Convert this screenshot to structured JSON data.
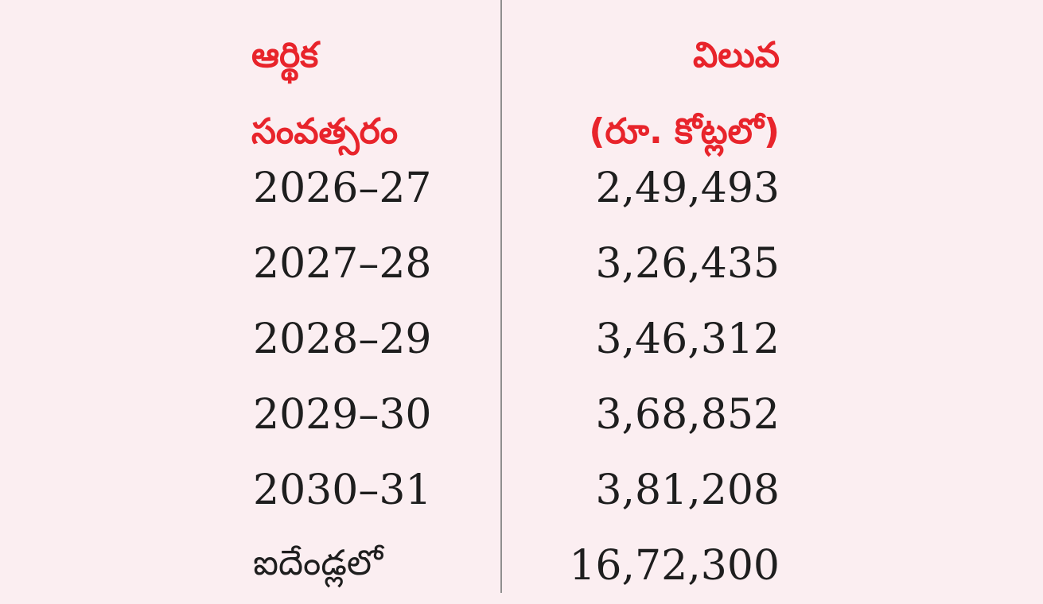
{
  "table": {
    "header": {
      "col1_line1": "ఆర్థిక",
      "col1_line2": "సంవత్సరం",
      "col2_line1": "విలువ",
      "col2_line2": "(రూ. కోట్లలో)"
    },
    "rows": [
      {
        "year": "2026–27",
        "value": "2,49,493"
      },
      {
        "year": "2027–28",
        "value": "3,26,435"
      },
      {
        "year": "2028–29",
        "value": "3,46,312"
      },
      {
        "year": "2029–30",
        "value": "3,68,852"
      },
      {
        "year": "2030–31",
        "value": "3,81,208"
      }
    ],
    "total": {
      "label": "ఐదేండ్లలో",
      "value": "16,72,300"
    }
  },
  "colors": {
    "background": "#fbeef1",
    "header_text": "#e8242b",
    "body_text": "#1e1e1e",
    "divider": "#8f8f8f"
  }
}
